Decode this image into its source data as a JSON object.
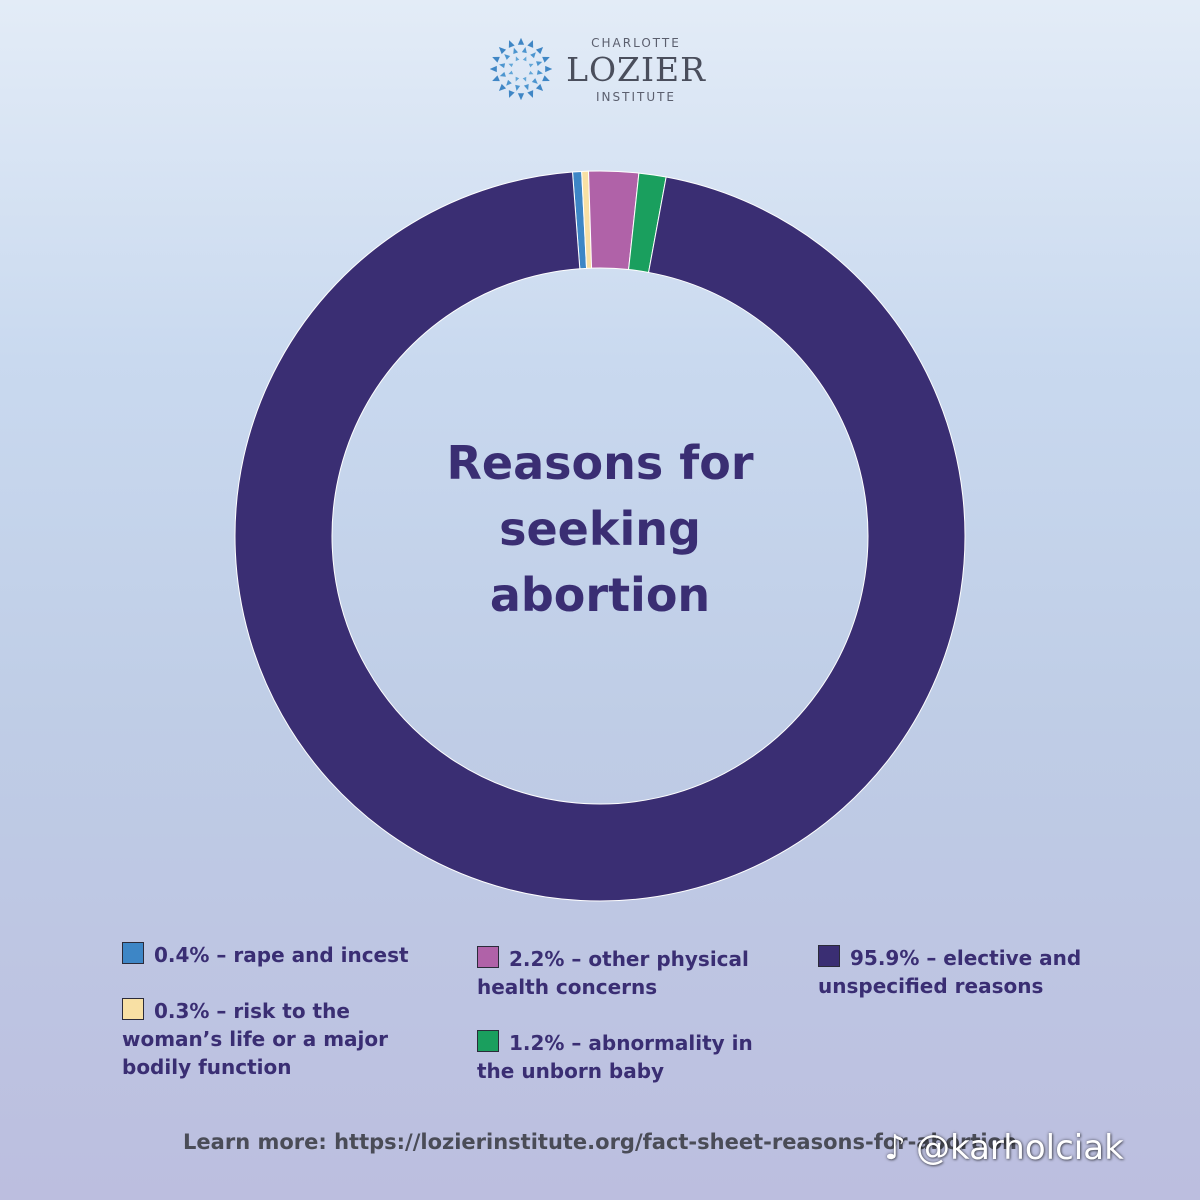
{
  "logo": {
    "line1": "CHARLOTTE",
    "line2": "LOZIER",
    "line3": "INSTITUTE",
    "icon": "starburst-icon"
  },
  "chart_data": {
    "type": "pie",
    "title": "Reasons for seeking abortion",
    "title_lines": [
      "Reasons for",
      "seeking",
      "abortion"
    ],
    "slices": [
      {
        "label": "rape and incest",
        "value": 0.4,
        "color": "#3d86c6"
      },
      {
        "label": "risk to the woman’s life or a major bodily function",
        "value": 0.3,
        "color": "#f8e0a4"
      },
      {
        "label": "other physical health concerns",
        "value": 2.2,
        "color": "#b062a8"
      },
      {
        "label": "abnormality in the unborn baby",
        "value": 1.2,
        "color": "#1a9f5e"
      },
      {
        "label": "elective and unspecified reasons",
        "value": 95.9,
        "color": "#3a2e73"
      }
    ],
    "slice_order_clockwise_from_top": [
      0,
      1,
      2,
      3,
      4
    ],
    "start_offset_percent": 1.2
  },
  "legend": [
    {
      "lines": [
        "0.4% – rape and incest"
      ],
      "color": "#3d86c6"
    },
    {
      "lines": [
        "0.3% – risk to the",
        "woman’s life or a major",
        "bodily function"
      ],
      "color": "#f8e0a4"
    },
    {
      "lines": [
        "2.2% – other physical",
        "health concerns"
      ],
      "color": "#b062a8"
    },
    {
      "lines": [
        "1.2% – abnormality in",
        "the unborn baby"
      ],
      "color": "#1a9f5e"
    },
    {
      "lines": [
        "95.9% – elective and",
        "unspecified reasons"
      ],
      "color": "#3a2e73"
    }
  ],
  "footer": {
    "text": "Learn more: https://lozierinstitute.org/fact-sheet-reasons-for-abortion"
  },
  "watermark": {
    "text": "@karholciak",
    "icon": "tiktok-note-icon"
  }
}
